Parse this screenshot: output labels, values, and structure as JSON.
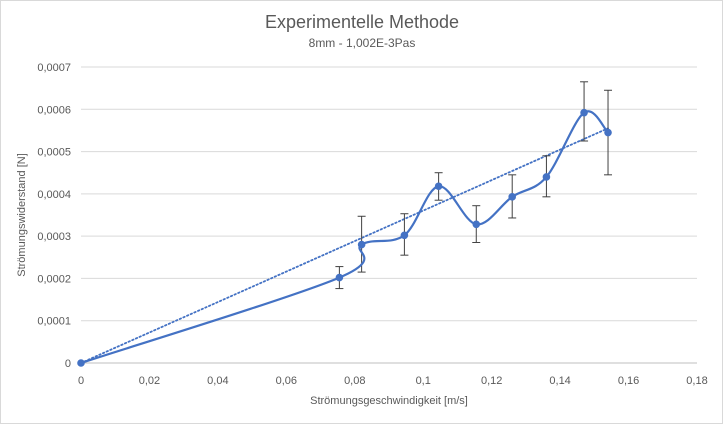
{
  "chart_data": {
    "type": "line",
    "title": "Experimentelle Methode",
    "subtitle": "8mm - 1,002E-3Pas",
    "xlabel": "Strömungsgeschwindigkeit [m/s]",
    "ylabel": "Strömungswiderstand [N]",
    "xlim": [
      0,
      0.18
    ],
    "ylim": [
      0,
      0.0007
    ],
    "x_ticks": [
      "0",
      "0,02",
      "0,04",
      "0,06",
      "0,08",
      "0,1",
      "0,12",
      "0,14",
      "0,16",
      "0,18"
    ],
    "y_ticks": [
      "0",
      "0,0001",
      "0,0002",
      "0,0003",
      "0,0004",
      "0,0005",
      "0,0006",
      "0,0007"
    ],
    "grid": "horizontal",
    "legend": "none",
    "series": [
      {
        "style": "smoothed line with markers and error bars",
        "color": "#4472c4",
        "x": [
          0,
          0.0755,
          0.082,
          0.0945,
          0.1045,
          0.1155,
          0.126,
          0.136,
          0.147,
          0.154
        ],
        "y": [
          0,
          0.000202,
          0.00028,
          0.000302,
          0.000418,
          0.000328,
          0.000393,
          0.00044,
          0.000592,
          0.000545
        ],
        "error_low": [
          0,
          0.000176,
          0.000215,
          0.000255,
          0.000385,
          0.000285,
          0.000343,
          0.000393,
          0.000525,
          0.000445
        ],
        "error_high": [
          0,
          0.000228,
          0.000347,
          0.000353,
          0.00045,
          0.000372,
          0.000445,
          0.00049,
          0.000665,
          0.000645
        ]
      },
      {
        "style": "dotted linear trendline",
        "color": "#4472c4",
        "x": [
          0,
          0.154
        ],
        "y": [
          0,
          0.000555
        ]
      }
    ]
  }
}
